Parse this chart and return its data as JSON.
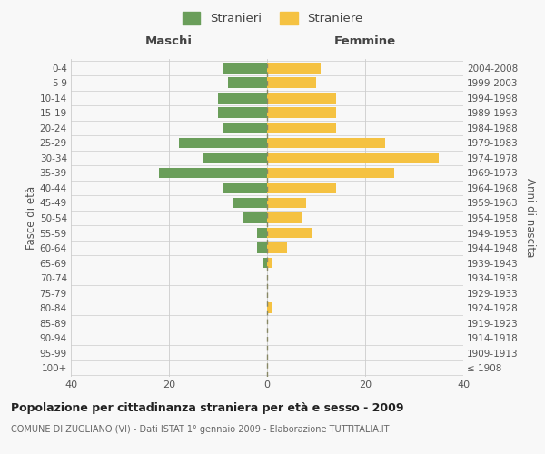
{
  "age_groups": [
    "100+",
    "95-99",
    "90-94",
    "85-89",
    "80-84",
    "75-79",
    "70-74",
    "65-69",
    "60-64",
    "55-59",
    "50-54",
    "45-49",
    "40-44",
    "35-39",
    "30-34",
    "25-29",
    "20-24",
    "15-19",
    "10-14",
    "5-9",
    "0-4"
  ],
  "birth_years": [
    "≤ 1908",
    "1909-1913",
    "1914-1918",
    "1919-1923",
    "1924-1928",
    "1929-1933",
    "1934-1938",
    "1939-1943",
    "1944-1948",
    "1949-1953",
    "1954-1958",
    "1959-1963",
    "1964-1968",
    "1969-1973",
    "1974-1978",
    "1979-1983",
    "1984-1988",
    "1989-1993",
    "1994-1998",
    "1999-2003",
    "2004-2008"
  ],
  "maschi": [
    0,
    0,
    0,
    0,
    0,
    0,
    0,
    1,
    2,
    2,
    5,
    7,
    9,
    22,
    13,
    18,
    9,
    10,
    10,
    8,
    9
  ],
  "femmine": [
    0,
    0,
    0,
    0,
    1,
    0,
    0,
    1,
    4,
    9,
    7,
    8,
    14,
    26,
    35,
    24,
    14,
    14,
    14,
    10,
    11
  ],
  "color_maschi": "#6a9e5a",
  "color_femmine": "#f5c242",
  "xlim": 40,
  "title": "Popolazione per cittadinanza straniera per età e sesso - 2009",
  "subtitle": "COMUNE DI ZUGLIANO (VI) - Dati ISTAT 1° gennaio 2009 - Elaborazione TUTTITALIA.IT",
  "ylabel_left": "Fasce di età",
  "ylabel_right": "Anni di nascita",
  "label_maschi": "Stranieri",
  "label_femmine": "Straniere",
  "header_maschi": "Maschi",
  "header_femmine": "Femmine",
  "bg_color": "#f8f8f8",
  "grid_color": "#cccccc"
}
